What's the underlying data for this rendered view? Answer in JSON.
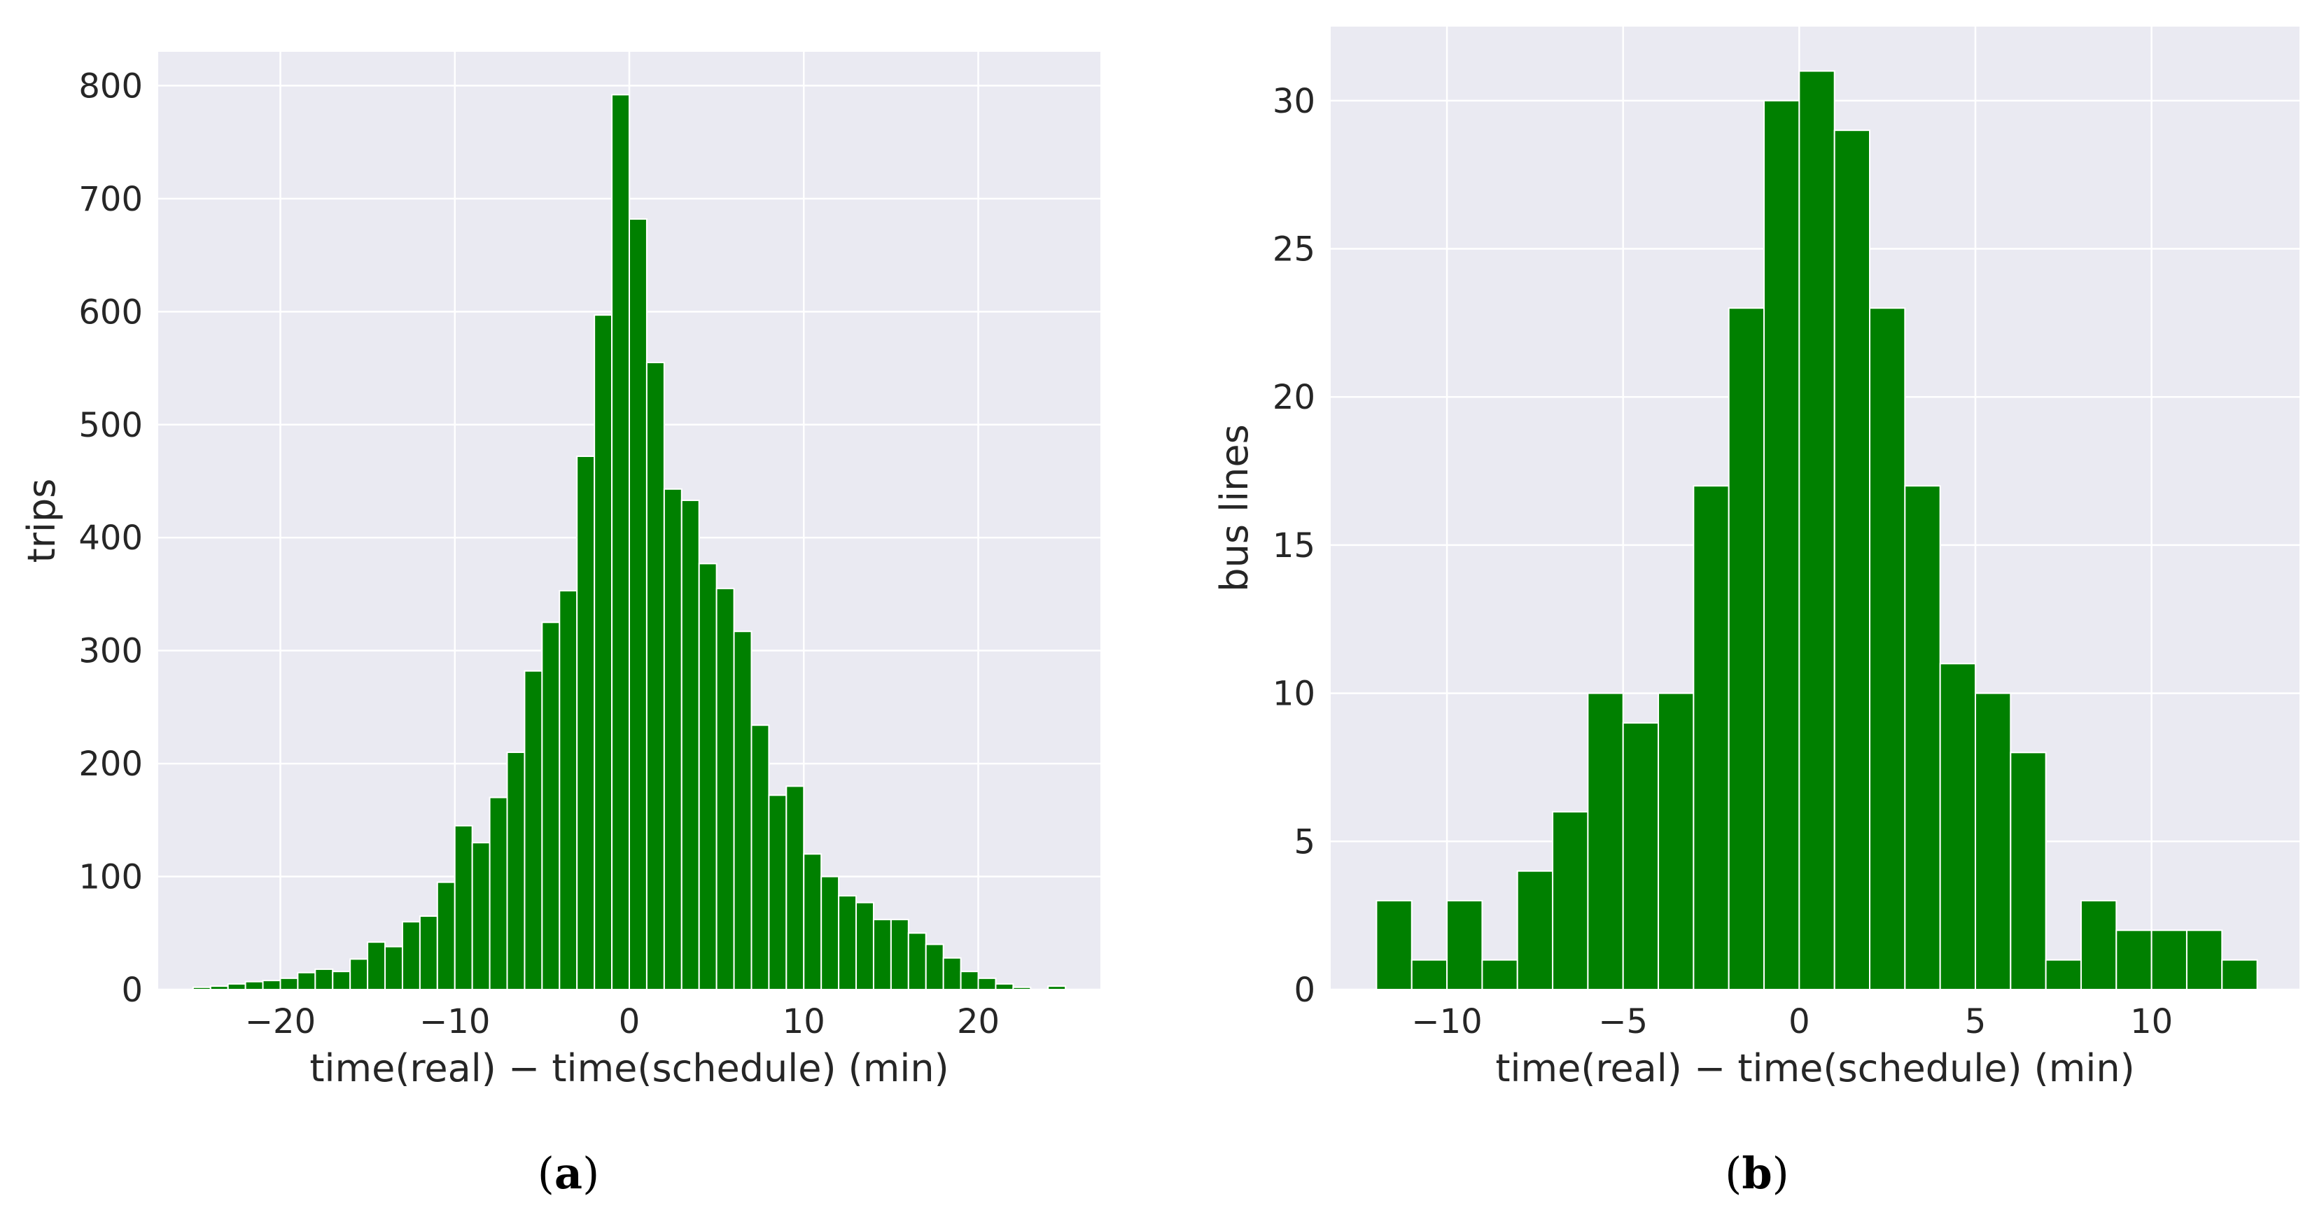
{
  "chart_data": [
    {
      "type": "bar",
      "histogram": true,
      "caption": "a",
      "xlabel": "time(real) − time(schedule) (min)",
      "ylabel": "trips",
      "xlim": [
        -27,
        27
      ],
      "ylim": [
        0,
        830
      ],
      "xticks": [
        -20,
        -10,
        0,
        10,
        20
      ],
      "xtick_labels": [
        "−20",
        "−10",
        "0",
        "10",
        "20"
      ],
      "yticks": [
        0,
        100,
        200,
        300,
        400,
        500,
        600,
        700,
        800
      ],
      "ytick_labels": [
        "0",
        "100",
        "200",
        "300",
        "400",
        "500",
        "600",
        "700",
        "800"
      ],
      "grid": true,
      "color": "#008000",
      "background": "#eaeaf2",
      "bin_start": -25,
      "bin_width": 1,
      "values": [
        2,
        3,
        5,
        7,
        8,
        10,
        15,
        18,
        16,
        27,
        42,
        38,
        60,
        65,
        95,
        145,
        130,
        170,
        210,
        282,
        325,
        353,
        472,
        597,
        792,
        682,
        555,
        443,
        433,
        377,
        355,
        317,
        234,
        172,
        180,
        120,
        100,
        83,
        77,
        62,
        62,
        50,
        40,
        28,
        16,
        10,
        5,
        2,
        0,
        3
      ]
    },
    {
      "type": "bar",
      "histogram": true,
      "caption": "b",
      "xlabel": "time(real) − time(schedule) (min)",
      "ylabel": "bus lines",
      "xlim": [
        -13.3,
        14.2
      ],
      "ylim": [
        0,
        32.5
      ],
      "xticks": [
        -10,
        -5,
        0,
        5,
        10
      ],
      "xtick_labels": [
        "−10",
        "−5",
        "0",
        "5",
        "10"
      ],
      "yticks": [
        0,
        5,
        10,
        15,
        20,
        25,
        30
      ],
      "ytick_labels": [
        "0",
        "5",
        "10",
        "15",
        "20",
        "25",
        "30"
      ],
      "grid": true,
      "color": "#008000",
      "background": "#eaeaf2",
      "bin_start": -12,
      "bin_width": 1,
      "values": [
        3,
        1,
        3,
        1,
        4,
        6,
        10,
        9,
        10,
        17,
        23,
        30,
        31,
        29,
        23,
        17,
        11,
        10,
        8,
        1,
        3,
        2,
        2,
        2,
        1
      ]
    }
  ]
}
